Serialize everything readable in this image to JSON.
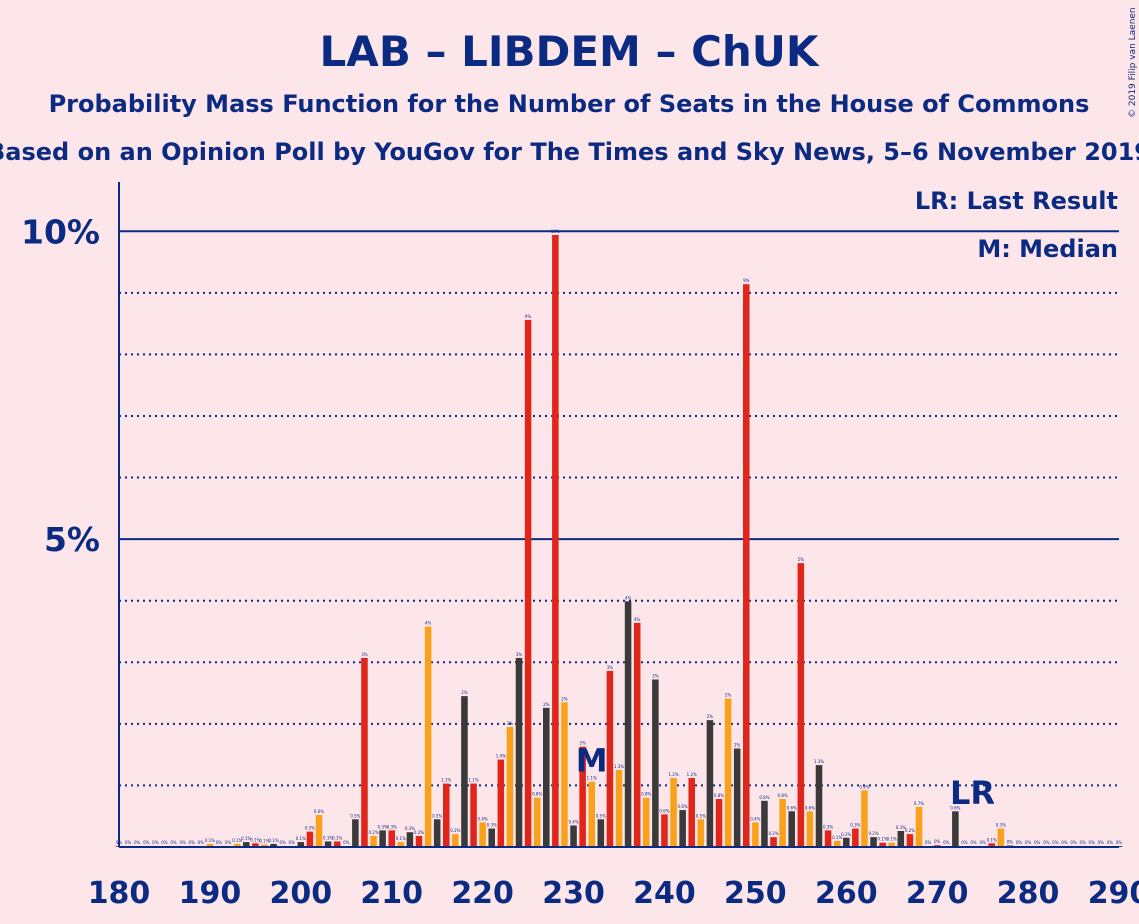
{
  "chart_data": {
    "type": "bar",
    "title": "LAB – LIBDEM – ChUK",
    "subtitle1": "Probability Mass Function for the Number of Seats in the House of Commons",
    "subtitle2": "Based on an Opinion Poll by YouGov for The Times and Sky News, 5–6 November 2019",
    "copyright": "© 2019 Filip van Laenen",
    "legend": {
      "lr": "LR: Last Result",
      "m": "M: Median",
      "placement": "top-right"
    },
    "x_range": [
      180,
      290
    ],
    "x_ticks": [
      180,
      190,
      200,
      210,
      220,
      230,
      240,
      250,
      260,
      270,
      280,
      290
    ],
    "x_tick_labels": [
      "180",
      "190",
      "200",
      "210",
      "220",
      "230",
      "240",
      "250",
      "260",
      "270",
      "280",
      "290"
    ],
    "ylim": [
      0,
      10.8
    ],
    "y_ticks_major": [
      5,
      10
    ],
    "y_tick_labels": [
      "5%",
      "10%"
    ],
    "y_ticks_minor": [
      1,
      2,
      3,
      4,
      6,
      7,
      8,
      9
    ],
    "median": {
      "seat": 232,
      "label": "M"
    },
    "last_result": {
      "seat": 262,
      "label": "LR"
    },
    "colors": {
      "red": "#e0251b",
      "orange": "#f9a11b",
      "dark": "#3a3a3a",
      "text": "#0b2a82",
      "background": "#fde6ea"
    },
    "bars": [
      {
        "x": 180,
        "v": 0.0,
        "c": "red",
        "l": "0%"
      },
      {
        "x": 181,
        "v": 0.0,
        "c": "orange",
        "l": "0%"
      },
      {
        "x": 182,
        "v": 0.0,
        "c": "dark",
        "l": "0%"
      },
      {
        "x": 183,
        "v": 0.0,
        "c": "red",
        "l": "0%"
      },
      {
        "x": 184,
        "v": 0.0,
        "c": "orange",
        "l": "0%"
      },
      {
        "x": 185,
        "v": 0.0,
        "c": "dark",
        "l": "0%"
      },
      {
        "x": 186,
        "v": 0.0,
        "c": "red",
        "l": "0%"
      },
      {
        "x": 187,
        "v": 0.0,
        "c": "orange",
        "l": "0%"
      },
      {
        "x": 188,
        "v": 0.0,
        "c": "dark",
        "l": "0%"
      },
      {
        "x": 189,
        "v": 0.0,
        "c": "red",
        "l": "0%"
      },
      {
        "x": 190,
        "v": 0.05,
        "c": "orange",
        "l": "0.1%"
      },
      {
        "x": 191,
        "v": 0.0,
        "c": "dark",
        "l": "0%"
      },
      {
        "x": 192,
        "v": 0.0,
        "c": "red",
        "l": "0%"
      },
      {
        "x": 193,
        "v": 0.05,
        "c": "orange",
        "l": "0.1%"
      },
      {
        "x": 194,
        "v": 0.08,
        "c": "dark",
        "l": "0.1%"
      },
      {
        "x": 195,
        "v": 0.06,
        "c": "red",
        "l": "0.1%"
      },
      {
        "x": 196,
        "v": 0.04,
        "c": "orange",
        "l": "0.1%"
      },
      {
        "x": 197,
        "v": 0.05,
        "c": "dark",
        "l": "0.1%"
      },
      {
        "x": 198,
        "v": 0.0,
        "c": "red",
        "l": "0%"
      },
      {
        "x": 199,
        "v": 0.0,
        "c": "orange",
        "l": "0%"
      },
      {
        "x": 200,
        "v": 0.08,
        "c": "dark",
        "l": "0.1%"
      },
      {
        "x": 201,
        "v": 0.25,
        "c": "red",
        "l": "0.3%"
      },
      {
        "x": 202,
        "v": 0.52,
        "c": "orange",
        "l": "0.6%"
      },
      {
        "x": 203,
        "v": 0.09,
        "c": "dark",
        "l": "0.1%"
      },
      {
        "x": 204,
        "v": 0.09,
        "c": "red",
        "l": "0.1%"
      },
      {
        "x": 205,
        "v": 0.0,
        "c": "orange",
        "l": "0%"
      },
      {
        "x": 206,
        "v": 0.45,
        "c": "dark",
        "l": "0.5%"
      },
      {
        "x": 207,
        "v": 3.07,
        "c": "red",
        "l": "3%"
      },
      {
        "x": 208,
        "v": 0.18,
        "c": "orange",
        "l": "0.2%"
      },
      {
        "x": 209,
        "v": 0.27,
        "c": "dark",
        "l": "0.3%"
      },
      {
        "x": 210,
        "v": 0.27,
        "c": "red",
        "l": "0.3%"
      },
      {
        "x": 211,
        "v": 0.08,
        "c": "orange",
        "l": "0.1%"
      },
      {
        "x": 212,
        "v": 0.24,
        "c": "dark",
        "l": "0.3%"
      },
      {
        "x": 213,
        "v": 0.18,
        "c": "red",
        "l": "0.2%"
      },
      {
        "x": 214,
        "v": 3.58,
        "c": "orange",
        "l": "4%"
      },
      {
        "x": 215,
        "v": 0.45,
        "c": "dark",
        "l": "0.5%"
      },
      {
        "x": 216,
        "v": 1.03,
        "c": "red",
        "l": "1.1%"
      },
      {
        "x": 217,
        "v": 0.21,
        "c": "orange",
        "l": "0.2%"
      },
      {
        "x": 218,
        "v": 2.45,
        "c": "dark",
        "l": "2%"
      },
      {
        "x": 219,
        "v": 1.03,
        "c": "red",
        "l": "1.1%"
      },
      {
        "x": 220,
        "v": 0.4,
        "c": "orange",
        "l": "0.4%"
      },
      {
        "x": 221,
        "v": 0.3,
        "c": "dark",
        "l": "0.3%"
      },
      {
        "x": 222,
        "v": 1.42,
        "c": "red",
        "l": "1.4%"
      },
      {
        "x": 223,
        "v": 1.95,
        "c": "orange",
        "l": "2%"
      },
      {
        "x": 224,
        "v": 3.07,
        "c": "dark",
        "l": "3%"
      },
      {
        "x": 225,
        "v": 8.56,
        "c": "red",
        "l": "9%"
      },
      {
        "x": 226,
        "v": 0.8,
        "c": "orange",
        "l": "0.8%"
      },
      {
        "x": 227,
        "v": 2.26,
        "c": "dark",
        "l": "2%"
      },
      {
        "x": 228,
        "v": 9.94,
        "c": "red",
        "l": "10%"
      },
      {
        "x": 229,
        "v": 2.35,
        "c": "orange",
        "l": "2%"
      },
      {
        "x": 230,
        "v": 0.35,
        "c": "dark",
        "l": "0.4%"
      },
      {
        "x": 231,
        "v": 1.63,
        "c": "red",
        "l": "2%"
      },
      {
        "x": 232,
        "v": 1.06,
        "c": "orange",
        "l": "1.1%"
      },
      {
        "x": 233,
        "v": 0.45,
        "c": "dark",
        "l": "0.5%"
      },
      {
        "x": 234,
        "v": 2.86,
        "c": "red",
        "l": "3%"
      },
      {
        "x": 235,
        "v": 1.25,
        "c": "orange",
        "l": "1.3%"
      },
      {
        "x": 236,
        "v": 3.99,
        "c": "dark",
        "l": "4%"
      },
      {
        "x": 237,
        "v": 3.64,
        "c": "red",
        "l": "4%"
      },
      {
        "x": 238,
        "v": 0.8,
        "c": "orange",
        "l": "0.8%"
      },
      {
        "x": 239,
        "v": 2.72,
        "c": "dark",
        "l": "3%"
      },
      {
        "x": 240,
        "v": 0.53,
        "c": "red",
        "l": "0.6%"
      },
      {
        "x": 241,
        "v": 1.12,
        "c": "orange",
        "l": "1.2%"
      },
      {
        "x": 242,
        "v": 0.6,
        "c": "dark",
        "l": "0.6%"
      },
      {
        "x": 243,
        "v": 1.12,
        "c": "red",
        "l": "1.2%"
      },
      {
        "x": 244,
        "v": 0.45,
        "c": "orange",
        "l": "0.5%"
      },
      {
        "x": 245,
        "v": 2.06,
        "c": "dark",
        "l": "2%"
      },
      {
        "x": 246,
        "v": 0.78,
        "c": "red",
        "l": "0.8%"
      },
      {
        "x": 247,
        "v": 2.41,
        "c": "orange",
        "l": "2%"
      },
      {
        "x": 248,
        "v": 1.6,
        "c": "dark",
        "l": "2%"
      },
      {
        "x": 249,
        "v": 9.14,
        "c": "red",
        "l": "9%"
      },
      {
        "x": 250,
        "v": 0.4,
        "c": "orange",
        "l": "0.4%"
      },
      {
        "x": 251,
        "v": 0.75,
        "c": "dark",
        "l": "0.8%"
      },
      {
        "x": 252,
        "v": 0.16,
        "c": "red",
        "l": "0.2%"
      },
      {
        "x": 253,
        "v": 0.78,
        "c": "orange",
        "l": "0.8%"
      },
      {
        "x": 254,
        "v": 0.58,
        "c": "dark",
        "l": "0.6%"
      },
      {
        "x": 255,
        "v": 4.61,
        "c": "red",
        "l": "5%"
      },
      {
        "x": 256,
        "v": 0.58,
        "c": "orange",
        "l": "0.6%"
      },
      {
        "x": 257,
        "v": 1.33,
        "c": "dark",
        "l": "1.3%"
      },
      {
        "x": 258,
        "v": 0.27,
        "c": "red",
        "l": "0.3%"
      },
      {
        "x": 259,
        "v": 0.1,
        "c": "orange",
        "l": "0.1%"
      },
      {
        "x": 260,
        "v": 0.15,
        "c": "dark",
        "l": "0.2%"
      },
      {
        "x": 261,
        "v": 0.3,
        "c": "red",
        "l": "0.3%"
      },
      {
        "x": 262,
        "v": 0.92,
        "c": "orange",
        "l": "0.9%"
      },
      {
        "x": 263,
        "v": 0.16,
        "c": "dark",
        "l": "0.2%"
      },
      {
        "x": 264,
        "v": 0.07,
        "c": "red",
        "l": "0.1%"
      },
      {
        "x": 265,
        "v": 0.07,
        "c": "orange",
        "l": "0.1%"
      },
      {
        "x": 266,
        "v": 0.26,
        "c": "dark",
        "l": "0.3%"
      },
      {
        "x": 267,
        "v": 0.21,
        "c": "red",
        "l": "0.2%"
      },
      {
        "x": 268,
        "v": 0.65,
        "c": "orange",
        "l": "0.7%"
      },
      {
        "x": 269,
        "v": 0.0,
        "c": "dark",
        "l": "0%"
      },
      {
        "x": 270,
        "v": 0.03,
        "c": "red",
        "l": "0%"
      },
      {
        "x": 271,
        "v": 0.0,
        "c": "orange",
        "l": "0%"
      },
      {
        "x": 272,
        "v": 0.58,
        "c": "dark",
        "l": "0.6%"
      },
      {
        "x": 273,
        "v": 0.0,
        "c": "red",
        "l": "0%"
      },
      {
        "x": 274,
        "v": 0.0,
        "c": "orange",
        "l": "0%"
      },
      {
        "x": 275,
        "v": 0.0,
        "c": "dark",
        "l": "0%"
      },
      {
        "x": 276,
        "v": 0.06,
        "c": "red",
        "l": "0.1%"
      },
      {
        "x": 277,
        "v": 0.3,
        "c": "orange",
        "l": "0.3%"
      },
      {
        "x": 278,
        "v": 0.02,
        "c": "dark",
        "l": "0%"
      },
      {
        "x": 279,
        "v": 0.0,
        "c": "red",
        "l": "0%"
      },
      {
        "x": 280,
        "v": 0.0,
        "c": "orange",
        "l": "0%"
      },
      {
        "x": 281,
        "v": 0.0,
        "c": "dark",
        "l": "0%"
      },
      {
        "x": 282,
        "v": 0.0,
        "c": "red",
        "l": "0%"
      },
      {
        "x": 283,
        "v": 0.0,
        "c": "orange",
        "l": "0%"
      },
      {
        "x": 284,
        "v": 0.0,
        "c": "dark",
        "l": "0%"
      },
      {
        "x": 285,
        "v": 0.0,
        "c": "red",
        "l": "0%"
      },
      {
        "x": 286,
        "v": 0.0,
        "c": "orange",
        "l": "0%"
      },
      {
        "x": 287,
        "v": 0.0,
        "c": "dark",
        "l": "0%"
      },
      {
        "x": 288,
        "v": 0.0,
        "c": "red",
        "l": "0%"
      },
      {
        "x": 289,
        "v": 0.0,
        "c": "orange",
        "l": "0%"
      },
      {
        "x": 290,
        "v": 0.0,
        "c": "dark",
        "l": "0%"
      }
    ]
  }
}
